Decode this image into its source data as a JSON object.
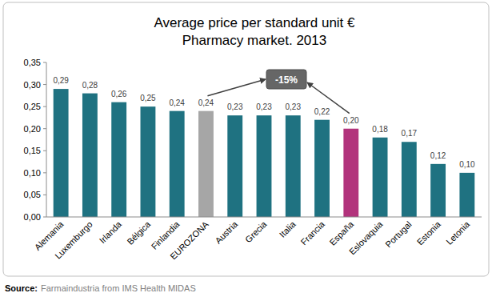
{
  "chart_data": {
    "type": "bar",
    "title": "Average price per standard unit €",
    "subtitle": "Pharmacy market. 2013",
    "categories": [
      "Alemania",
      "Luxemburgo",
      "Irlanda",
      "Bélgica",
      "Finlandia",
      "EUROZONA",
      "Austria",
      "Grecia",
      "Italia",
      "Francia",
      "España",
      "Eslovaquia",
      "Portugal",
      "Estonia",
      "Letonia"
    ],
    "values": [
      0.29,
      0.28,
      0.26,
      0.25,
      0.24,
      0.24,
      0.23,
      0.23,
      0.23,
      0.22,
      0.2,
      0.18,
      0.17,
      0.12,
      0.1
    ],
    "value_labels": [
      "0,29",
      "0,28",
      "0,26",
      "0,25",
      "0,24",
      "0,24",
      "0,23",
      "0,23",
      "0,23",
      "0,22",
      "0,20",
      "0,18",
      "0,17",
      "0,12",
      "0,10"
    ],
    "colors": [
      "#1f7281",
      "#1f7281",
      "#1f7281",
      "#1f7281",
      "#1f7281",
      "#a6a6a6",
      "#1f7281",
      "#1f7281",
      "#1f7281",
      "#1f7281",
      "#b2337c",
      "#1f7281",
      "#1f7281",
      "#1f7281",
      "#1f7281"
    ],
    "ylim": [
      0,
      0.35
    ],
    "yticks": [
      {
        "value": 0,
        "label": "0,00"
      },
      {
        "value": 0.05,
        "label": "0,05"
      },
      {
        "value": 0.1,
        "label": "0,10"
      },
      {
        "value": 0.15,
        "label": "0,15"
      },
      {
        "value": 0.2,
        "label": "0,20"
      },
      {
        "value": 0.25,
        "label": "0,25"
      },
      {
        "value": 0.3,
        "label": "0,30"
      },
      {
        "value": 0.35,
        "label": "0,35"
      }
    ],
    "grid": false,
    "data_labels": true,
    "annotation": "-15%",
    "source_label": "Source:",
    "source": "Farmaindustria from IMS Health MIDAS"
  }
}
